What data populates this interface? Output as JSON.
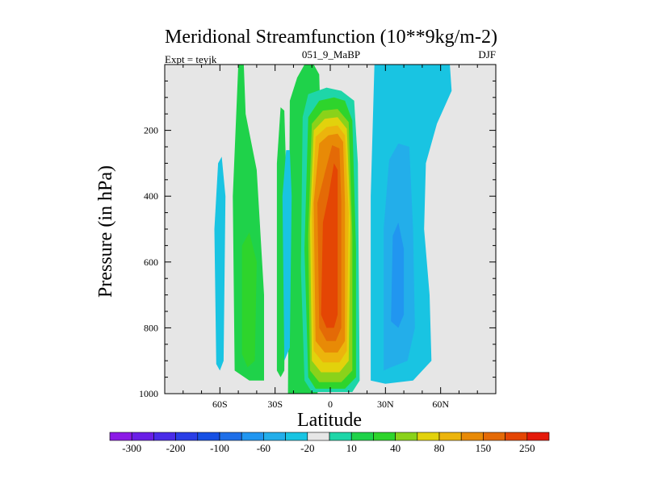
{
  "chart_data": {
    "type": "heatmap",
    "title": "Meridional Streamfunction (10**9kg/m-2)",
    "left_label": "Expt = teyjk",
    "center_label": "051_9_MaBP",
    "right_label": "DJF",
    "xlabel": "Latitude",
    "ylabel": "Pressure (in hPa)",
    "xlim": [
      -90,
      90
    ],
    "ylim": [
      1000,
      0
    ],
    "x_ticks": [
      {
        "value": -60,
        "label": "60S"
      },
      {
        "value": -30,
        "label": "30S"
      },
      {
        "value": 0,
        "label": "0"
      },
      {
        "value": 30,
        "label": "30N"
      },
      {
        "value": 60,
        "label": "60N"
      }
    ],
    "y_ticks": [
      {
        "value": 200,
        "label": "200"
      },
      {
        "value": 400,
        "label": "400"
      },
      {
        "value": 600,
        "label": "600"
      },
      {
        "value": 800,
        "label": "800"
      },
      {
        "value": 1000,
        "label": "1000"
      }
    ],
    "colorbar": {
      "levels": [
        -300,
        -250,
        -200,
        -150,
        -100,
        -80,
        -60,
        -40,
        -20,
        -10,
        10,
        20,
        40,
        60,
        80,
        100,
        150,
        200,
        250,
        300
      ],
      "labels": [
        "-300",
        "-200",
        "-100",
        "-60",
        "-20",
        "10",
        "40",
        "80",
        "150",
        "250"
      ],
      "colors": [
        "#8c1ae6",
        "#6a1fe6",
        "#4a2ce8",
        "#2a3ee6",
        "#1650e4",
        "#1f6fe8",
        "#2196f0",
        "#23aeea",
        "#19c4e2",
        "#e6e6e6",
        "#1ed6a8",
        "#1fd24a",
        "#2ed42c",
        "#8ad21a",
        "#e2d20c",
        "#ecb40c",
        "#e88a06",
        "#e46a06",
        "#e44604",
        "#e41a0a"
      ]
    },
    "contour_regions": [
      {
        "name": "sh-cell-band-outer",
        "level": 20,
        "color": "#1fd24a",
        "points": [
          [
            -23,
            1000
          ],
          [
            -22,
            110
          ],
          [
            -18,
            40
          ],
          [
            -14,
            0
          ],
          [
            -9,
            0
          ],
          [
            -6,
            30
          ],
          [
            -4,
            400
          ],
          [
            -4,
            900
          ],
          [
            -7,
            1000
          ]
        ]
      },
      {
        "name": "hadley-10",
        "color": "#1ed6a8",
        "points": [
          [
            -14,
            960
          ],
          [
            -16,
            620
          ],
          [
            -15,
            160
          ],
          [
            -12,
            90
          ],
          [
            -2,
            70
          ],
          [
            6,
            80
          ],
          [
            13,
            110
          ],
          [
            15,
            300
          ],
          [
            16,
            960
          ],
          [
            12,
            995
          ],
          [
            -10,
            995
          ]
        ]
      },
      {
        "name": "hadley-20",
        "color": "#2ed42c",
        "points": [
          [
            -12,
            950
          ],
          [
            -14,
            560
          ],
          [
            -12,
            160
          ],
          [
            -6,
            110
          ],
          [
            2,
            100
          ],
          [
            8,
            110
          ],
          [
            12,
            170
          ],
          [
            14,
            560
          ],
          [
            14,
            950
          ],
          [
            8,
            985
          ],
          [
            -8,
            985
          ]
        ]
      },
      {
        "name": "hadley-40",
        "color": "#8ad21a",
        "points": [
          [
            -11,
            930
          ],
          [
            -12,
            520
          ],
          [
            -10,
            180
          ],
          [
            -4,
            140
          ],
          [
            4,
            135
          ],
          [
            10,
            175
          ],
          [
            12,
            520
          ],
          [
            12,
            930
          ],
          [
            6,
            965
          ],
          [
            -6,
            965
          ]
        ]
      },
      {
        "name": "hadley-60",
        "color": "#e2d20c",
        "points": [
          [
            -10,
            900
          ],
          [
            -11,
            480
          ],
          [
            -9,
            200
          ],
          [
            -3,
            165
          ],
          [
            4,
            160
          ],
          [
            9,
            195
          ],
          [
            11,
            480
          ],
          [
            10,
            900
          ],
          [
            5,
            935
          ],
          [
            -5,
            935
          ]
        ]
      },
      {
        "name": "hadley-80",
        "color": "#ecb40c",
        "points": [
          [
            -9,
            870
          ],
          [
            -10,
            450
          ],
          [
            -8,
            220
          ],
          [
            -2,
            190
          ],
          [
            4,
            185
          ],
          [
            8,
            215
          ],
          [
            10,
            450
          ],
          [
            9,
            870
          ],
          [
            5,
            905
          ],
          [
            -4,
            905
          ]
        ]
      },
      {
        "name": "hadley-100",
        "color": "#e88a06",
        "points": [
          [
            -8,
            840
          ],
          [
            -9,
            420
          ],
          [
            -6,
            240
          ],
          [
            -1,
            215
          ],
          [
            4,
            210
          ],
          [
            7,
            235
          ],
          [
            8,
            420
          ],
          [
            8,
            840
          ],
          [
            4,
            875
          ],
          [
            -3,
            875
          ]
        ]
      },
      {
        "name": "hadley-150",
        "color": "#e46a06",
        "points": [
          [
            -6,
            800
          ],
          [
            -7,
            420
          ],
          [
            -3,
            330
          ],
          [
            1,
            245
          ],
          [
            5,
            255
          ],
          [
            6,
            420
          ],
          [
            6,
            800
          ],
          [
            3,
            840
          ],
          [
            -2,
            840
          ]
        ]
      },
      {
        "name": "hadley-250",
        "color": "#e44604",
        "points": [
          [
            -5,
            760
          ],
          [
            -4,
            480
          ],
          [
            -1,
            400
          ],
          [
            2,
            300
          ],
          [
            4,
            320
          ],
          [
            4,
            500
          ],
          [
            4,
            760
          ],
          [
            2,
            800
          ],
          [
            -2,
            800
          ]
        ]
      },
      {
        "name": "sh-cell-40-10",
        "color": "#1fd24a",
        "points": [
          [
            -52,
            930
          ],
          [
            -53,
            400
          ],
          [
            -50,
            0
          ],
          [
            -47,
            0
          ],
          [
            -46,
            150
          ],
          [
            -40,
            320
          ],
          [
            -36,
            700
          ],
          [
            -36,
            960
          ],
          [
            -44,
            960
          ]
        ]
      },
      {
        "name": "sh-cell-40-20",
        "color": "#2ed42c",
        "points": [
          [
            -48,
            880
          ],
          [
            -48,
            550
          ],
          [
            -44,
            510
          ],
          [
            -40,
            600
          ],
          [
            -41,
            900
          ],
          [
            -45,
            920
          ]
        ]
      },
      {
        "name": "sh-cell-20-10",
        "color": "#1fd24a",
        "points": [
          [
            -29,
            930
          ],
          [
            -29,
            300
          ],
          [
            -27,
            130
          ],
          [
            -25,
            140
          ],
          [
            -24,
            320
          ],
          [
            -25,
            930
          ],
          [
            -27,
            950
          ]
        ]
      },
      {
        "name": "sh-polar-neg",
        "color": "#19c4e2",
        "points": [
          [
            -62,
            910
          ],
          [
            -63,
            500
          ],
          [
            -61,
            300
          ],
          [
            -59,
            280
          ],
          [
            -57,
            400
          ],
          [
            -58,
            900
          ],
          [
            -60,
            930
          ]
        ]
      },
      {
        "name": "sh-subtrop-neg",
        "color": "#19c4e2",
        "points": [
          [
            -25,
            900
          ],
          [
            -26,
            400
          ],
          [
            -24,
            260
          ],
          [
            -22,
            260
          ],
          [
            -21,
            400
          ],
          [
            -22,
            860
          ]
        ]
      },
      {
        "name": "nh-ferrel-neg-20",
        "color": "#19c4e2",
        "points": [
          [
            22,
            960
          ],
          [
            22,
            400
          ],
          [
            24,
            0
          ],
          [
            40,
            0
          ],
          [
            65,
            0
          ],
          [
            66,
            80
          ],
          [
            58,
            180
          ],
          [
            52,
            300
          ],
          [
            51,
            500
          ],
          [
            54,
            700
          ],
          [
            55,
            900
          ],
          [
            45,
            960
          ],
          [
            30,
            970
          ]
        ]
      },
      {
        "name": "nh-ferrel-neg-40",
        "color": "#23aeea",
        "points": [
          [
            29,
            930
          ],
          [
            29,
            500
          ],
          [
            32,
            290
          ],
          [
            37,
            240
          ],
          [
            43,
            250
          ],
          [
            45,
            500
          ],
          [
            46,
            800
          ],
          [
            42,
            900
          ],
          [
            33,
            920
          ]
        ]
      },
      {
        "name": "nh-ferrel-neg-60",
        "color": "#2196f0",
        "points": [
          [
            33,
            780
          ],
          [
            34,
            520
          ],
          [
            37,
            480
          ],
          [
            40,
            560
          ],
          [
            40,
            760
          ],
          [
            37,
            800
          ]
        ]
      }
    ]
  }
}
